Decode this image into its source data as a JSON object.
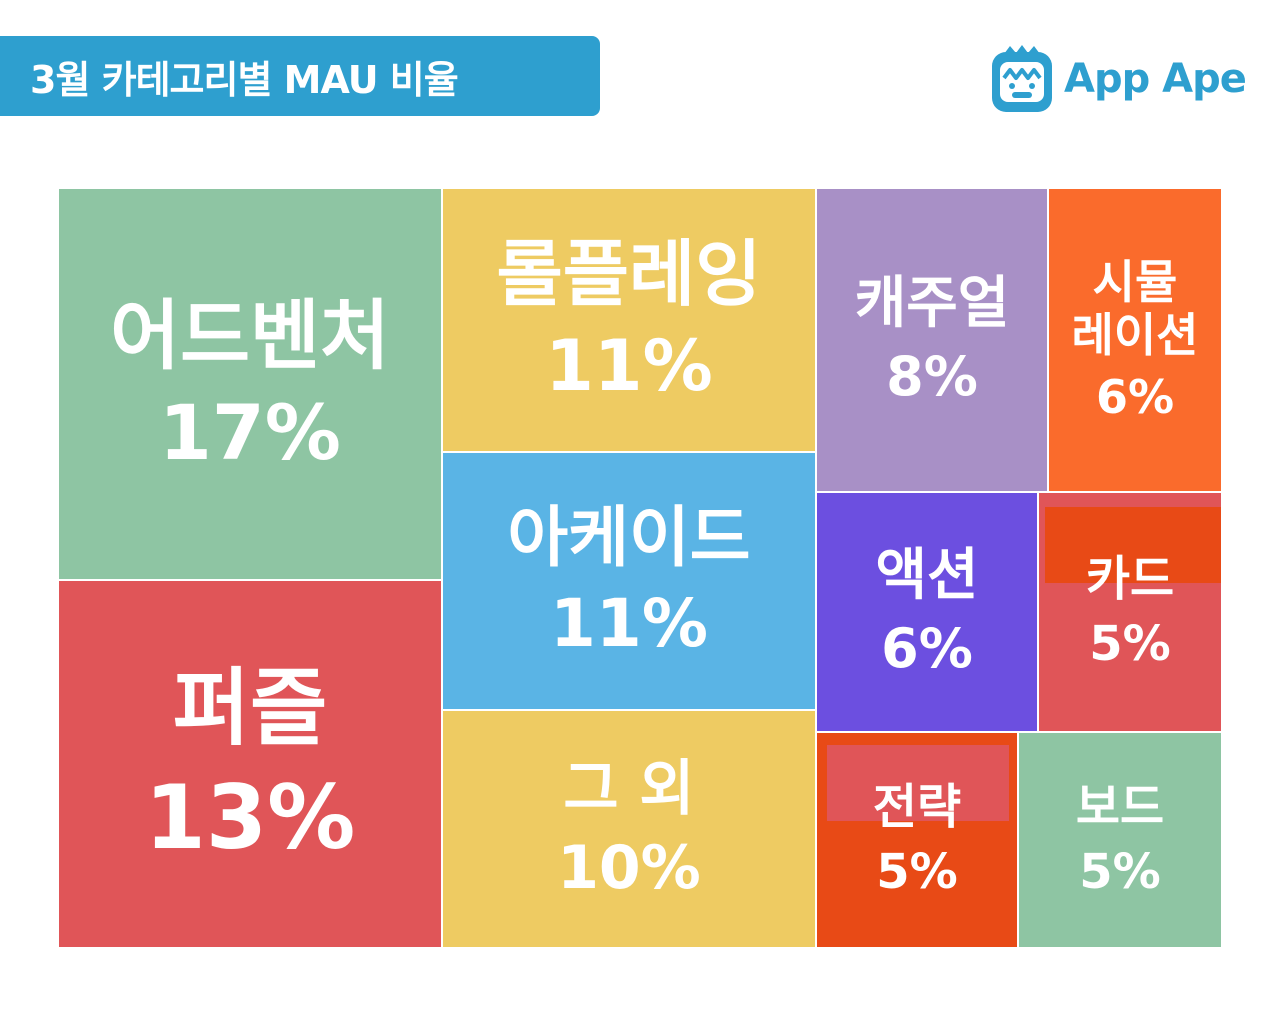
{
  "header": {
    "title": "3월 카테고리별 MAU 비율"
  },
  "brand": {
    "name": "App Ape"
  },
  "colors": {
    "header_bg": "#2e9fcf",
    "brand": "#2e9fcf"
  },
  "chart_data": {
    "type": "treemap",
    "title": "3월 카테고리별 MAU 비율",
    "unit": "%",
    "items": [
      {
        "label": "어드벤처",
        "value": 17,
        "display": "17%",
        "color": "#8ec5a3"
      },
      {
        "label": "퍼즐",
        "value": 13,
        "display": "13%",
        "color": "#e05558"
      },
      {
        "label": "롤플레잉",
        "value": 11,
        "display": "11%",
        "color": "#eecb62"
      },
      {
        "label": "아케이드",
        "value": 11,
        "display": "11%",
        "color": "#5ab4e5"
      },
      {
        "label": "그 외",
        "value": 10,
        "display": "10%",
        "color": "#eecb62"
      },
      {
        "label": "캐주얼",
        "value": 8,
        "display": "8%",
        "color": "#a890c6"
      },
      {
        "label": "시뮬\n레이션",
        "value": 6,
        "display": "6%",
        "color": "#fa6b2c"
      },
      {
        "label": "액션",
        "value": 6,
        "display": "6%",
        "color": "#6c4fe0"
      },
      {
        "label": "카드",
        "value": 5,
        "display": "5%",
        "color": "#e05558"
      },
      {
        "label": "전략",
        "value": 5,
        "display": "5%",
        "color": "#e84a16"
      },
      {
        "label": "보드",
        "value": 5,
        "display": "5%",
        "color": "#8ec5a3"
      }
    ]
  }
}
